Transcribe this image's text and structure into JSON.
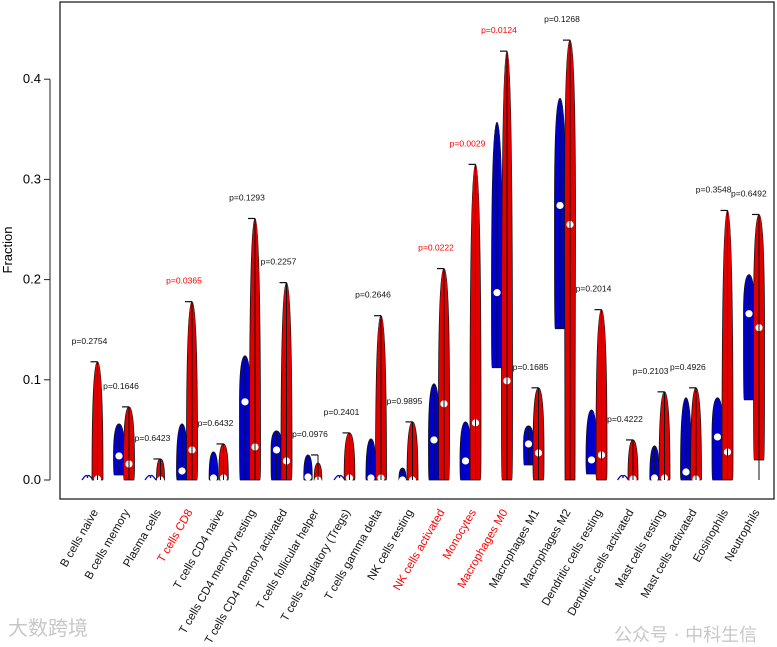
{
  "chart_data": {
    "type": "violin",
    "title": "",
    "xlabel": "",
    "ylabel": "Fraction",
    "ylim": [
      0,
      0.47
    ],
    "yticks": [
      "0.0",
      "0.1",
      "0.2",
      "0.3",
      "0.4"
    ],
    "ytick_values": [
      0,
      0.1,
      0.2,
      0.3,
      0.4
    ],
    "grid": false,
    "series_colors": {
      "group1": "#0000cc",
      "group2": "#e00000"
    },
    "significant_color": "#ff0000",
    "categories": [
      {
        "label": "B cells naive",
        "p": "p=0.2754",
        "sig": false,
        "blue": {
          "min": 0,
          "max": 0,
          "median": 0
        },
        "red": {
          "min": 0,
          "max": 0.118,
          "median": 0.001
        }
      },
      {
        "label": "B cells memory",
        "p": "p=0.1646",
        "sig": false,
        "blue": {
          "min": 0.005,
          "max": 0.056,
          "median": 0.024
        },
        "red": {
          "min": 0,
          "max": 0.073,
          "median": 0.016
        }
      },
      {
        "label": "Plasma cells",
        "p": "p=0.6423",
        "sig": false,
        "blue": {
          "min": 0,
          "max": 0.002,
          "median": 0
        },
        "red": {
          "min": 0,
          "max": 0.021,
          "median": 0
        }
      },
      {
        "label": "T cells CD8",
        "p": "p=0.0365",
        "sig": true,
        "blue": {
          "min": 0,
          "max": 0.056,
          "median": 0.009
        },
        "red": {
          "min": 0,
          "max": 0.178,
          "median": 0.03
        }
      },
      {
        "label": "T cells CD4 naive",
        "p": "p=0.6432",
        "sig": false,
        "blue": {
          "min": 0,
          "max": 0.028,
          "median": 0.002
        },
        "red": {
          "min": 0,
          "max": 0.036,
          "median": 0.002
        }
      },
      {
        "label": "T cells CD4 memory resting",
        "p": "p=0.1293",
        "sig": false,
        "blue": {
          "min": 0,
          "max": 0.124,
          "median": 0.078
        },
        "red": {
          "min": 0,
          "max": 0.261,
          "median": 0.033
        }
      },
      {
        "label": "T cells CD4 memory activated",
        "p": "p=0.2257",
        "sig": false,
        "blue": {
          "min": 0,
          "max": 0.049,
          "median": 0.03
        },
        "red": {
          "min": 0,
          "max": 0.197,
          "median": 0.019
        }
      },
      {
        "label": "T cells follicular helper",
        "p": "p=0.0976",
        "sig": false,
        "blue": {
          "min": 0,
          "max": 0.025,
          "median": 0.003
        },
        "red": {
          "min": 0,
          "max": 0.017,
          "median": 0
        }
      },
      {
        "label": "T cells regulatory (Tregs)",
        "p": "p=0.2401",
        "sig": false,
        "blue": {
          "min": 0,
          "max": 0,
          "median": 0
        },
        "red": {
          "min": 0,
          "max": 0.047,
          "median": 0.002
        }
      },
      {
        "label": "T cells gamma delta",
        "p": "p=0.2646",
        "sig": false,
        "blue": {
          "min": 0,
          "max": 0.041,
          "median": 0.002
        },
        "red": {
          "min": 0,
          "max": 0.164,
          "median": 0.002
        }
      },
      {
        "label": "NK cells resting",
        "p": "p=0.9895",
        "sig": false,
        "blue": {
          "min": 0,
          "max": 0.012,
          "median": 0
        },
        "red": {
          "min": 0,
          "max": 0.058,
          "median": 0
        }
      },
      {
        "label": "NK cells activated",
        "p": "p=0.0222",
        "sig": true,
        "blue": {
          "min": 0,
          "max": 0.096,
          "median": 0.04
        },
        "red": {
          "min": 0,
          "max": 0.211,
          "median": 0.076
        }
      },
      {
        "label": "Monocytes",
        "p": "p=0.0029",
        "sig": true,
        "blue": {
          "min": 0,
          "max": 0.058,
          "median": 0.019
        },
        "red": {
          "min": 0,
          "max": 0.315,
          "median": 0.057
        }
      },
      {
        "label": "Macrophages M0",
        "p": "p=0.0124",
        "sig": true,
        "blue": {
          "min": 0.112,
          "max": 0.357,
          "median": 0.187
        },
        "red": {
          "min": 0,
          "max": 0.428,
          "median": 0.099
        }
      },
      {
        "label": "Macrophages M1",
        "p": "p=0.1685",
        "sig": false,
        "blue": {
          "min": 0.015,
          "max": 0.054,
          "median": 0.036
        },
        "red": {
          "min": 0,
          "max": 0.092,
          "median": 0.027
        }
      },
      {
        "label": "Macrophages M2",
        "p": "p=0.1268",
        "sig": false,
        "blue": {
          "min": 0.151,
          "max": 0.381,
          "median": 0.274
        },
        "red": {
          "min": 0,
          "max": 0.439,
          "median": 0.255
        }
      },
      {
        "label": "Dendritic cells resting",
        "p": "p=0.2014",
        "sig": false,
        "blue": {
          "min": 0.006,
          "max": 0.07,
          "median": 0.02
        },
        "red": {
          "min": 0,
          "max": 0.17,
          "median": 0.025
        }
      },
      {
        "label": "Dendritic cells activated",
        "p": "p=0.4222",
        "sig": false,
        "blue": {
          "min": 0,
          "max": 0,
          "median": 0
        },
        "red": {
          "min": 0,
          "max": 0.04,
          "median": 0.001
        }
      },
      {
        "label": "Mast cells resting",
        "p": "p=0.2103",
        "sig": false,
        "blue": {
          "min": 0,
          "max": 0.034,
          "median": 0.002
        },
        "red": {
          "min": 0,
          "max": 0.088,
          "median": 0.002
        }
      },
      {
        "label": "Mast cells activated",
        "p": "p=0.4926",
        "sig": false,
        "blue": {
          "min": 0,
          "max": 0.082,
          "median": 0.008
        },
        "red": {
          "min": 0,
          "max": 0.092,
          "median": 0.001
        }
      },
      {
        "label": "Eosinophils",
        "p": "p=0.3548",
        "sig": false,
        "blue": {
          "min": 0,
          "max": 0.082,
          "median": 0.043
        },
        "red": {
          "min": 0,
          "max": 0.269,
          "median": 0.028
        }
      },
      {
        "label": "Neutrophils",
        "p": "p=0.6492",
        "sig": false,
        "blue": {
          "min": 0.08,
          "max": 0.205,
          "median": 0.166
        },
        "red": {
          "min": 0.02,
          "max": 0.265,
          "median": 0.152
        }
      }
    ]
  },
  "watermarks": {
    "left": "大数跨境",
    "right": "公众号 · 中科生信"
  }
}
